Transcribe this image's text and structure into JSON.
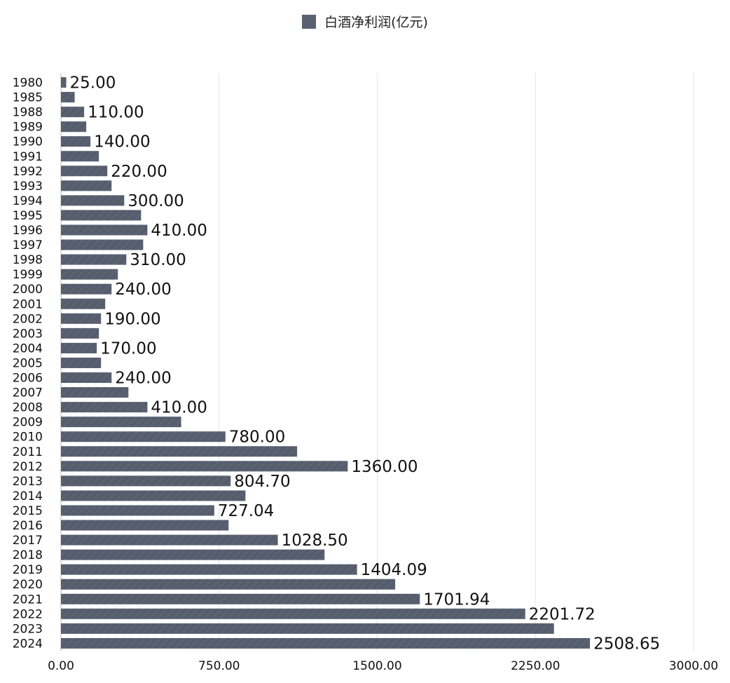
{
  "chart_data": {
    "type": "bar",
    "orientation": "horizontal",
    "legend": {
      "label": "白酒净利润(亿元)",
      "position": "top-center"
    },
    "categories": [
      "1980",
      "1985",
      "1988",
      "1989",
      "1990",
      "1991",
      "1992",
      "1993",
      "1994",
      "1995",
      "1996",
      "1997",
      "1998",
      "1999",
      "2000",
      "2001",
      "2002",
      "2003",
      "2004",
      "2005",
      "2006",
      "2007",
      "2008",
      "2009",
      "2010",
      "2011",
      "2012",
      "2013",
      "2014",
      "2015",
      "2016",
      "2017",
      "2018",
      "2019",
      "2020",
      "2021",
      "2022",
      "2023",
      "2024"
    ],
    "series": [
      {
        "name": "白酒净利润(亿元)",
        "values": [
          25.0,
          65,
          110.0,
          120,
          140.0,
          180,
          220.0,
          240,
          300.0,
          380,
          410.0,
          390,
          310.0,
          270,
          240.0,
          210,
          190.0,
          180,
          170.0,
          190,
          240.0,
          320,
          410.0,
          570,
          780.0,
          1120,
          1360.0,
          804.7,
          875,
          727.04,
          795,
          1028.5,
          1250,
          1404.09,
          1585,
          1701.94,
          2201.72,
          2338,
          2508.65
        ],
        "data_labels": [
          "25.00",
          "",
          "110.00",
          "",
          "140.00",
          "",
          "220.00",
          "",
          "300.00",
          "",
          "410.00",
          "",
          "310.00",
          "",
          "240.00",
          "",
          "190.00",
          "",
          "170.00",
          "",
          "240.00",
          "",
          "410.00",
          "",
          "780.00",
          "",
          "1360.00",
          "804.70",
          "",
          "727.04",
          "",
          "1028.50",
          "",
          "1404.09",
          "",
          "1701.94",
          "2201.72",
          "",
          "2508.65"
        ]
      }
    ],
    "x_ticks": [
      "0.00",
      "750.00",
      "1500.00",
      "2250.00",
      "3000.00"
    ],
    "xlim": [
      0,
      3000
    ],
    "grid": true,
    "color": "#5a6272"
  }
}
